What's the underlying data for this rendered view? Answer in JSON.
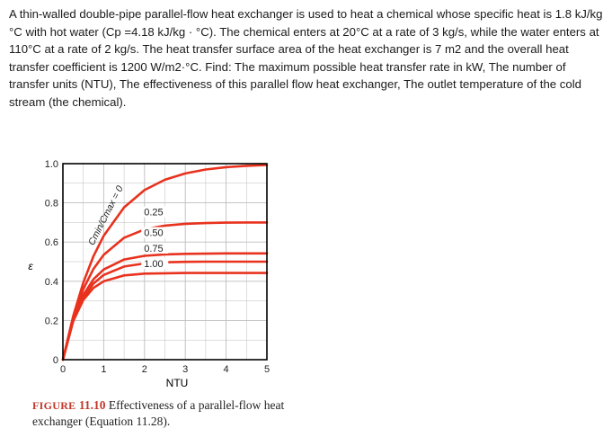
{
  "problem_text": "A thin-walled double-pipe parallel-flow heat exchanger is used to heat a chemical whose specific heat is 1.8 kJ/kg °C with hot water (Cp =4.18 kJ/kg · °C). The chemical enters at 20°C at a rate of 3 kg/s, while the water enters at 110°C at a rate of 2 kg/s. The heat transfer surface area of the heat exchanger is 7 m2 and the overall heat transfer coefficient is 1200 W/m2·°C. Find: The maximum possible heat transfer rate in kW, The number of transfer units (NTU), The effectiveness of this parallel flow heat exchanger, The outlet temperature of the cold stream (the chemical).",
  "caption": {
    "figure_label": "FIGURE",
    "figure_number": "11.10",
    "text": "Effectiveness of a parallel-flow heat exchanger (Equation 11.28)."
  },
  "colors": {
    "curve": "#e8321e",
    "grid": "#bdbdbd",
    "axis": "#000000",
    "label_box": "#ffffff"
  },
  "chart_data": {
    "type": "line",
    "xlabel": "NTU",
    "ylabel": "ε",
    "xlim": [
      0,
      5
    ],
    "ylim": [
      0,
      1.0
    ],
    "x_ticks": [
      "0",
      "1",
      "2",
      "3",
      "4",
      "5"
    ],
    "y_ticks": [
      "0",
      "0.2",
      "0.4",
      "0.6",
      "0.8",
      "1.0"
    ],
    "grid": true,
    "x": [
      0,
      0.25,
      0.5,
      0.75,
      1,
      1.5,
      2,
      2.5,
      3,
      3.5,
      4,
      4.5,
      5
    ],
    "series": [
      {
        "name": "Cmin/Cmax = 0",
        "values": [
          0,
          0.221,
          0.393,
          0.528,
          0.632,
          0.777,
          0.865,
          0.918,
          0.95,
          0.97,
          0.982,
          0.989,
          0.993
        ]
      },
      {
        "name": "0.25",
        "values": [
          0,
          0.212,
          0.36,
          0.463,
          0.535,
          0.622,
          0.664,
          0.684,
          0.693,
          0.697,
          0.699,
          0.7,
          0.7
        ]
      },
      {
        "name": "0.50",
        "values": [
          0,
          0.203,
          0.33,
          0.41,
          0.46,
          0.511,
          0.53,
          0.537,
          0.54,
          0.541,
          0.542,
          0.542,
          0.542
        ]
      },
      {
        "name": "0.75",
        "values": [
          0,
          0.196,
          0.305,
          0.366,
          0.4,
          0.43,
          0.439,
          0.441,
          0.442,
          0.442,
          0.442,
          0.442,
          0.442
        ]
      },
      {
        "name": "1.00",
        "values": [
          0,
          0.197,
          0.316,
          0.388,
          0.432,
          0.475,
          0.491,
          0.497,
          0.499,
          0.5,
          0.5,
          0.5,
          0.5
        ]
      }
    ]
  }
}
